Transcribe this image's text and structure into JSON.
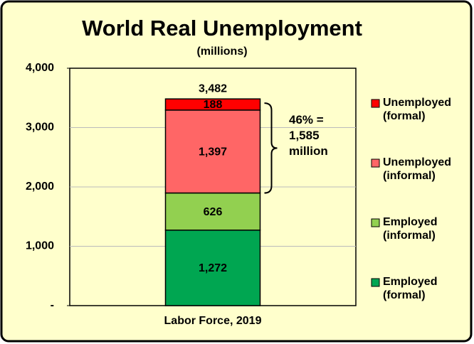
{
  "chart_data": {
    "type": "stacked_bar",
    "title": "World Real Unemployment",
    "subtitle": "(millions)",
    "categories": [
      "Labor Force, 2019"
    ],
    "series": [
      {
        "name": "Employed (formal)",
        "color": "#00a651",
        "values": [
          1272
        ],
        "value_labels": [
          "1,272"
        ]
      },
      {
        "name": "Employed (informal)",
        "color": "#92d050",
        "values": [
          626
        ],
        "value_labels": [
          "626"
        ]
      },
      {
        "name": "Unemployed (informal)",
        "color": "#ff6666",
        "values": [
          1397
        ],
        "value_labels": [
          "1,397"
        ]
      },
      {
        "name": "Unemployed (formal)",
        "color": "#ff0000",
        "values": [
          188
        ],
        "value_labels": [
          "188"
        ]
      }
    ],
    "totals": [
      3482
    ],
    "total_labels": [
      "3,482"
    ],
    "annotation": "46% = 1,585 million",
    "ylim": [
      0,
      4000
    ],
    "yticks": [
      {
        "value": 0,
        "label": "-"
      },
      {
        "value": 1000,
        "label": "1,000"
      },
      {
        "value": 2000,
        "label": "2,000"
      },
      {
        "value": 3000,
        "label": "3,000"
      },
      {
        "value": 4000,
        "label": "4,000"
      }
    ],
    "grid": true,
    "legend": "right"
  }
}
